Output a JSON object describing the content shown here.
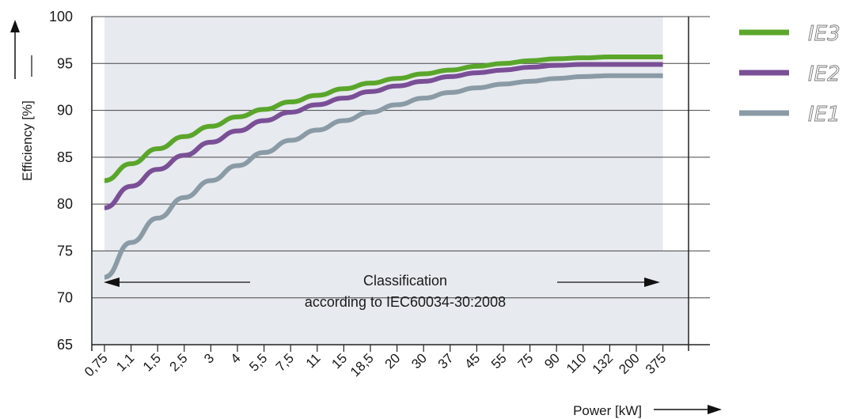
{
  "chart_data": {
    "type": "line",
    "ylabel": "Efficiency [%]",
    "xlabel": "Power [kW]",
    "ylim": [
      65,
      100
    ],
    "yticks": [
      65,
      70,
      75,
      80,
      85,
      90,
      95,
      100
    ],
    "categories": [
      "0,75",
      "1,1",
      "1,5",
      "2,5",
      "3",
      "4",
      "5,5",
      "7,5",
      "11",
      "15",
      "18,5",
      "20",
      "30",
      "37",
      "45",
      "55",
      "75",
      "90",
      "110",
      "132",
      "200",
      "375"
    ],
    "grid": true,
    "legend_position": "right",
    "annotation": {
      "line1": "Classification",
      "line2": "according to IEC60034-30:2008"
    },
    "series": [
      {
        "name": "IE3",
        "color": "#5aa62b",
        "values": [
          82.5,
          84.3,
          85.9,
          87.2,
          88.3,
          89.3,
          90.1,
          90.9,
          91.6,
          92.3,
          92.9,
          93.4,
          93.9,
          94.3,
          94.7,
          95.0,
          95.3,
          95.5,
          95.6,
          95.7,
          95.7,
          95.7
        ]
      },
      {
        "name": "IE2",
        "color": "#7a4f96",
        "values": [
          79.6,
          81.9,
          83.7,
          85.2,
          86.6,
          87.8,
          88.9,
          89.8,
          90.6,
          91.3,
          92.0,
          92.6,
          93.1,
          93.6,
          94.0,
          94.3,
          94.6,
          94.8,
          94.9,
          94.9,
          94.9,
          94.9
        ]
      },
      {
        "name": "IE1",
        "color": "#8a9ba6",
        "values": [
          72.2,
          75.9,
          78.5,
          80.7,
          82.5,
          84.1,
          85.5,
          86.8,
          87.9,
          88.9,
          89.8,
          90.6,
          91.3,
          91.9,
          92.4,
          92.8,
          93.1,
          93.4,
          93.6,
          93.7,
          93.7,
          93.7
        ]
      }
    ]
  }
}
